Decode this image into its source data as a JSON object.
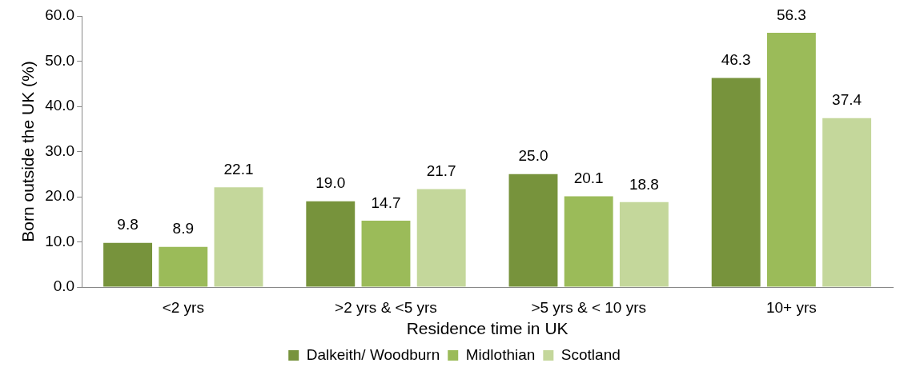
{
  "chart_data": {
    "type": "bar",
    "xlabel": "Residence time in UK",
    "ylabel": "Born outside the UK (%)",
    "categories": [
      "<2 yrs",
      ">2 yrs & <5 yrs",
      ">5 yrs & < 10 yrs",
      "10+ yrs"
    ],
    "series": [
      {
        "name": "Dalkeith/ Woodburn",
        "color": "#77933c",
        "values": [
          9.8,
          19.0,
          25.0,
          46.3
        ],
        "value_labels": [
          "9.8",
          "19.0",
          "25.0",
          "46.3"
        ]
      },
      {
        "name": "Midlothian",
        "color": "#9bbb59",
        "values": [
          8.9,
          14.7,
          20.1,
          56.3
        ],
        "value_labels": [
          "8.9",
          "14.7",
          "20.1",
          "56.3"
        ]
      },
      {
        "name": "Scotland",
        "color": "#c4d79b",
        "values": [
          22.1,
          21.7,
          18.8,
          37.4
        ],
        "value_labels": [
          "22.1",
          "21.7",
          "18.8",
          "37.4"
        ]
      }
    ],
    "ylim": [
      0,
      60
    ],
    "yticks": [
      {
        "value": 0,
        "label": "0.0"
      },
      {
        "value": 10,
        "label": "10.0"
      },
      {
        "value": 20,
        "label": "20.0"
      },
      {
        "value": 30,
        "label": "30.0"
      },
      {
        "value": 40,
        "label": "40.0"
      },
      {
        "value": 50,
        "label": "50.0"
      },
      {
        "value": 60,
        "label": "60.0"
      }
    ],
    "grid": false,
    "legend": "bottom"
  }
}
